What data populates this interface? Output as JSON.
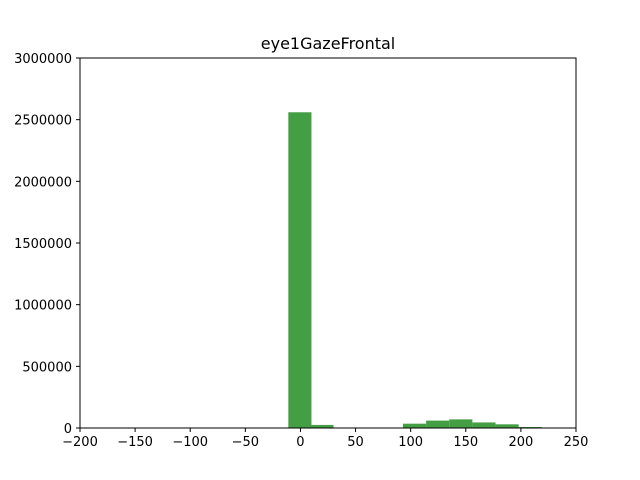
{
  "chart_data": {
    "type": "bar",
    "title": "eye1GazeFrontal",
    "xlabel": "",
    "ylabel": "",
    "xlim": [
      -200,
      250
    ],
    "ylim": [
      0,
      3000000
    ],
    "grid": false,
    "bar_color": "#3a9a3a",
    "x_ticks": [
      -200,
      -150,
      -100,
      -50,
      0,
      50,
      100,
      150,
      200,
      250
    ],
    "x_tick_labels": [
      "−200",
      "−150",
      "−100",
      "−50",
      "0",
      "50",
      "100",
      "150",
      "200",
      "250"
    ],
    "y_ticks": [
      0,
      500000,
      1000000,
      1500000,
      2000000,
      2500000,
      3000000
    ],
    "y_tick_labels": [
      "0",
      "500000",
      "1000000",
      "1500000",
      "2000000",
      "2500000",
      "3000000"
    ],
    "bins": [
      {
        "x0": -11,
        "x1": 10,
        "value": 2560000
      },
      {
        "x0": 10,
        "x1": 30,
        "value": 25000
      },
      {
        "x0": 93,
        "x1": 114,
        "value": 35000
      },
      {
        "x0": 114,
        "x1": 135,
        "value": 60000
      },
      {
        "x0": 135,
        "x1": 156,
        "value": 70000
      },
      {
        "x0": 156,
        "x1": 177,
        "value": 45000
      },
      {
        "x0": 177,
        "x1": 198,
        "value": 30000
      },
      {
        "x0": 198,
        "x1": 219,
        "value": 8000
      }
    ]
  }
}
